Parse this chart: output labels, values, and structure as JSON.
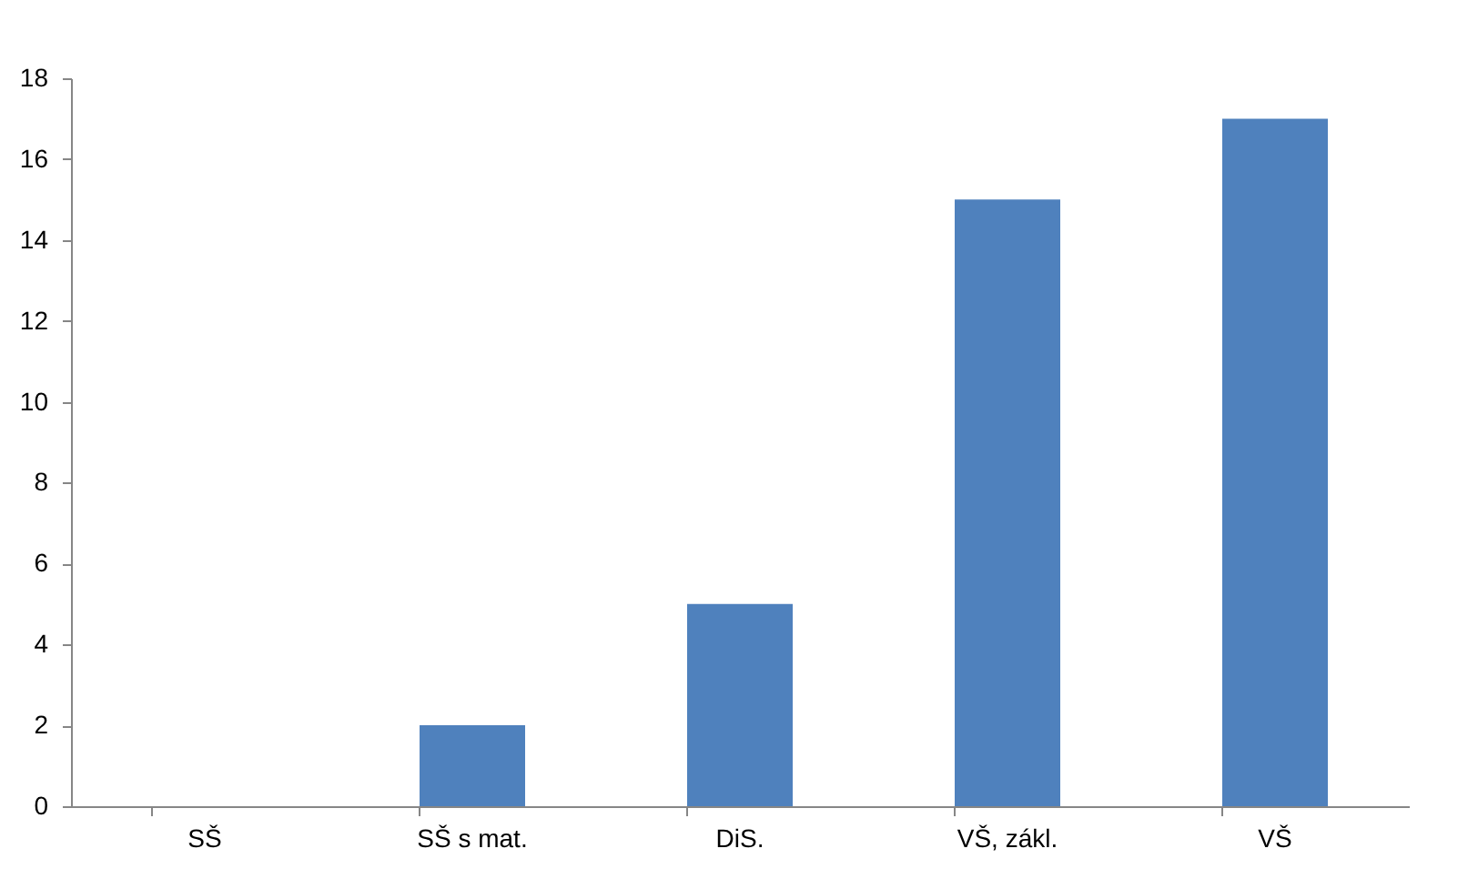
{
  "chart_data": {
    "type": "bar",
    "categories": [
      "SŠ",
      "SŠ s mat.",
      "DiS.",
      "VŠ, zákl.",
      "VŠ"
    ],
    "values": [
      0,
      2,
      5,
      15,
      17
    ],
    "color": "#4f81bd",
    "ylim": [
      0,
      18
    ],
    "yticks": [
      0,
      2,
      4,
      6,
      8,
      10,
      12,
      14,
      16,
      18
    ],
    "grid": false
  }
}
